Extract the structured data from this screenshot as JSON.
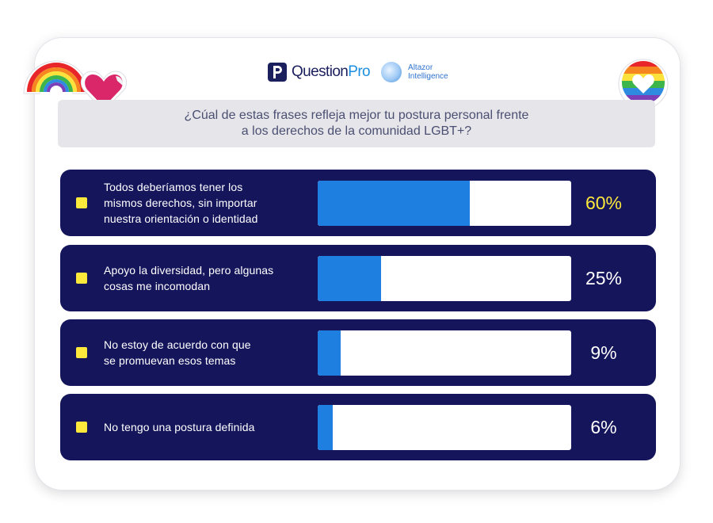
{
  "brand": {
    "questionpro_primary": "Question",
    "questionpro_secondary": "Pro",
    "altazor_line1": "Altazor",
    "altazor_line2": "Intelligence"
  },
  "question": {
    "line1": "¿Cúal de estas frases refleja mejor tu postura personal frente",
    "line2": "a los derechos de la comunidad LGBT+?"
  },
  "chart_data": {
    "type": "bar",
    "categories": [
      [
        "Todos deberíamos tener los",
        "mismos derechos, sin importar",
        "nuestra orientación o identidad"
      ],
      [
        "Apoyo la diversidad, pero algunas",
        "cosas me incomodan"
      ],
      [
        "No estoy de acuerdo con que",
        "se promuevan esos temas"
      ],
      [
        "No tengo una postura definida"
      ]
    ],
    "values": [
      60,
      25,
      9,
      6
    ],
    "value_labels": [
      "60%",
      "25%",
      "9%",
      "6%"
    ],
    "ylim": [
      0,
      100
    ],
    "highlight_index": 0
  },
  "colors": {
    "row_background": "#15155c",
    "bar_fill": "#1f7fe0",
    "bar_track": "#ffffff",
    "bullet": "#fde83c",
    "highlight_value": "#fde83c",
    "question_background": "#e6e6ea"
  },
  "decorations": [
    "rainbow-sticker",
    "heart-sticker",
    "rainbow-heart-chat-sticker"
  ]
}
